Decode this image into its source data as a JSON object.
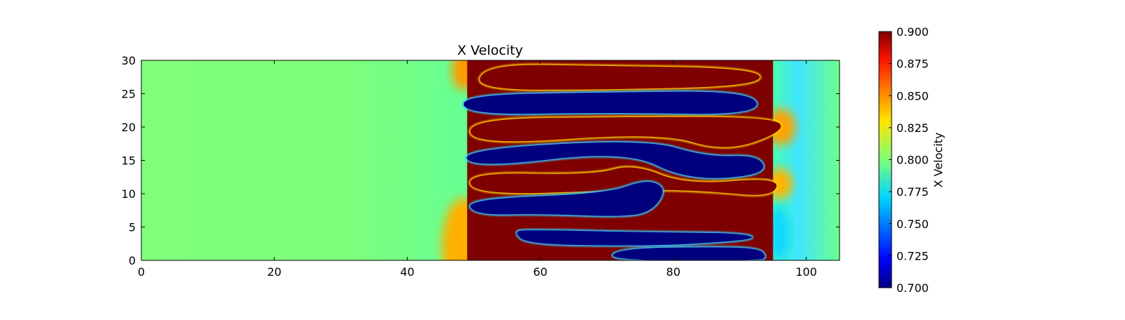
{
  "chart_data": {
    "type": "heatmap",
    "title": "X Velocity",
    "xlabel": "",
    "ylabel": "",
    "xlim": [
      0,
      105
    ],
    "ylim": [
      0,
      30
    ],
    "x_ticks": [
      0,
      20,
      40,
      60,
      80,
      100
    ],
    "y_ticks": [
      0,
      5,
      10,
      15,
      20,
      25,
      30
    ],
    "colormap": "jet",
    "colorbar": {
      "label": "X Velocity",
      "range": [
        0.7,
        0.9
      ],
      "ticks": [
        "0.700",
        "0.725",
        "0.750",
        "0.775",
        "0.800",
        "0.825",
        "0.850",
        "0.875",
        "0.900"
      ]
    },
    "background_value": 0.795,
    "mixing_zone_x": [
      49,
      95
    ],
    "bands": [
      {
        "kind": "high",
        "value": 0.9,
        "pts": [
          [
            52,
            29.4
          ],
          [
            68,
            29.2
          ],
          [
            93,
            28.8
          ],
          [
            93,
            26.2
          ],
          [
            70,
            25.6
          ],
          [
            50,
            25.6
          ]
        ]
      },
      {
        "kind": "low",
        "value": 0.7,
        "pts": [
          [
            48,
            24.8
          ],
          [
            70,
            25.2
          ],
          [
            92,
            25.4
          ],
          [
            93,
            21.8
          ],
          [
            70,
            22.2
          ],
          [
            49,
            21.8
          ]
        ]
      },
      {
        "kind": "high",
        "value": 0.9,
        "pts": [
          [
            49,
            21.2
          ],
          [
            72,
            21.5
          ],
          [
            95,
            21.5
          ],
          [
            97,
            19.5
          ],
          [
            88,
            16.2
          ],
          [
            78,
            19.2
          ],
          [
            50,
            17.2
          ]
        ]
      },
      {
        "kind": "low",
        "value": 0.7,
        "pts": [
          [
            48,
            16.6
          ],
          [
            76,
            18.2
          ],
          [
            85,
            15.5
          ],
          [
            93,
            15.8
          ],
          [
            94,
            12.8
          ],
          [
            82,
            12.0
          ],
          [
            73,
            16.5
          ],
          [
            50,
            13.8
          ]
        ]
      },
      {
        "kind": "high",
        "value": 0.9,
        "pts": [
          [
            49,
            13.2
          ],
          [
            68,
            12.8
          ],
          [
            74,
            14.5
          ],
          [
            82,
            11.3
          ],
          [
            96,
            12.5
          ],
          [
            95,
            9.5
          ],
          [
            86,
            10.3
          ],
          [
            79,
            10.6
          ],
          [
            72,
            10.5
          ],
          [
            50,
            9.8
          ]
        ]
      },
      {
        "kind": "low",
        "value": 0.7,
        "pts": [
          [
            49,
            9.2
          ],
          [
            70,
            10.0
          ],
          [
            76,
            12.2
          ],
          [
            79,
            10.8
          ],
          [
            77,
            7.5
          ],
          [
            73,
            6.5
          ],
          [
            60,
            7.0
          ],
          [
            50,
            6.8
          ]
        ]
      },
      {
        "kind": "low",
        "value": 0.7,
        "pts": [
          [
            56,
            4.3
          ],
          [
            58,
            4.6
          ],
          [
            76,
            4.2
          ],
          [
            90,
            4.1
          ],
          [
            93,
            3.2
          ],
          [
            82,
            2.4
          ],
          [
            74,
            2.2
          ],
          [
            58,
            2.4
          ]
        ]
      },
      {
        "kind": "low",
        "value": 0.7,
        "pts": [
          [
            70,
            0
          ],
          [
            72,
            1.8
          ],
          [
            86,
            2.0
          ],
          [
            93,
            1.8
          ],
          [
            94,
            0.5
          ],
          [
            93,
            0
          ]
        ]
      }
    ]
  }
}
